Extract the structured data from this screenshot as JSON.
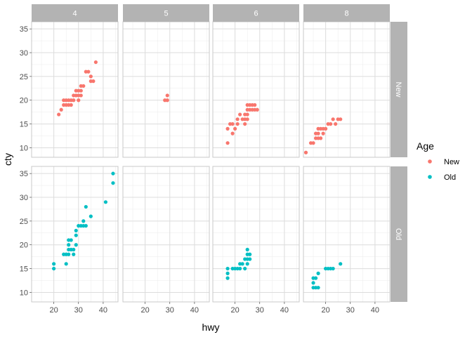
{
  "chart_data": {
    "type": "scatter",
    "xlabel": "hwy",
    "ylabel": "cty",
    "xlim": [
      11,
      46
    ],
    "ylim": [
      8,
      36.5
    ],
    "x_ticks": [
      20,
      30,
      40
    ],
    "y_ticks": [
      10,
      15,
      20,
      25,
      30,
      35
    ],
    "grid": true,
    "legend": {
      "title": "Age",
      "position": "right"
    },
    "facet_cols": [
      "4",
      "5",
      "6",
      "8"
    ],
    "facet_rows": [
      "New",
      "Old"
    ],
    "series": [
      {
        "name": "New",
        "color": "#F8766D"
      },
      {
        "name": "Old",
        "color": "#00BFC4"
      }
    ],
    "panels": [
      {
        "col": "4",
        "row": "New",
        "points": [
          [
            22,
            17
          ],
          [
            23,
            18
          ],
          [
            24,
            19
          ],
          [
            24,
            20
          ],
          [
            25,
            19
          ],
          [
            25,
            20
          ],
          [
            26,
            19
          ],
          [
            26,
            20
          ],
          [
            27,
            19
          ],
          [
            27,
            20
          ],
          [
            28,
            20
          ],
          [
            28,
            21
          ],
          [
            29,
            21
          ],
          [
            29,
            22
          ],
          [
            30,
            20
          ],
          [
            30,
            21
          ],
          [
            30,
            22
          ],
          [
            31,
            21
          ],
          [
            31,
            22
          ],
          [
            31,
            23
          ],
          [
            32,
            23
          ],
          [
            33,
            26
          ],
          [
            34,
            26
          ],
          [
            35,
            24
          ],
          [
            35,
            25
          ],
          [
            37,
            28
          ],
          [
            36,
            24
          ]
        ]
      },
      {
        "col": "5",
        "row": "New",
        "points": [
          [
            28,
            20
          ],
          [
            29,
            20
          ],
          [
            29,
            21
          ]
        ]
      },
      {
        "col": "6",
        "row": "New",
        "points": [
          [
            17,
            11
          ],
          [
            17,
            14
          ],
          [
            18,
            15
          ],
          [
            19,
            13
          ],
          [
            19,
            15
          ],
          [
            20,
            14
          ],
          [
            21,
            15
          ],
          [
            21,
            16
          ],
          [
            22,
            17
          ],
          [
            23,
            16
          ],
          [
            24,
            15
          ],
          [
            24,
            16
          ],
          [
            24,
            17
          ],
          [
            25,
            16
          ],
          [
            25,
            17
          ],
          [
            25,
            18
          ],
          [
            25,
            19
          ],
          [
            26,
            18
          ],
          [
            26,
            19
          ],
          [
            27,
            18
          ],
          [
            27,
            19
          ],
          [
            28,
            18
          ],
          [
            28,
            19
          ],
          [
            29,
            18
          ]
        ]
      },
      {
        "col": "8",
        "row": "New",
        "points": [
          [
            12,
            9
          ],
          [
            14,
            11
          ],
          [
            15,
            11
          ],
          [
            16,
            12
          ],
          [
            16,
            13
          ],
          [
            17,
            12
          ],
          [
            17,
            13
          ],
          [
            17,
            14
          ],
          [
            18,
            12
          ],
          [
            18,
            14
          ],
          [
            19,
            13
          ],
          [
            19,
            14
          ],
          [
            20,
            14
          ],
          [
            21,
            15
          ],
          [
            22,
            15
          ],
          [
            23,
            16
          ],
          [
            24,
            15
          ],
          [
            25,
            16
          ],
          [
            26,
            16
          ]
        ]
      },
      {
        "col": "4",
        "row": "Old",
        "points": [
          [
            20,
            15
          ],
          [
            20,
            16
          ],
          [
            24,
            18
          ],
          [
            25,
            16
          ],
          [
            25,
            18
          ],
          [
            26,
            18
          ],
          [
            26,
            19
          ],
          [
            26,
            20
          ],
          [
            26,
            21
          ],
          [
            27,
            19
          ],
          [
            27,
            21
          ],
          [
            28,
            18
          ],
          [
            28,
            19
          ],
          [
            29,
            20
          ],
          [
            29,
            22
          ],
          [
            29,
            23
          ],
          [
            30,
            24
          ],
          [
            31,
            24
          ],
          [
            32,
            24
          ],
          [
            32,
            25
          ],
          [
            33,
            24
          ],
          [
            33,
            28
          ],
          [
            35,
            26
          ],
          [
            41,
            29
          ],
          [
            44,
            33
          ],
          [
            44,
            35
          ]
        ]
      },
      {
        "col": "6",
        "row": "Old",
        "points": [
          [
            17,
            13
          ],
          [
            17,
            14
          ],
          [
            17,
            15
          ],
          [
            19,
            15
          ],
          [
            20,
            15
          ],
          [
            21,
            15
          ],
          [
            22,
            15
          ],
          [
            22,
            16
          ],
          [
            23,
            16
          ],
          [
            24,
            15
          ],
          [
            24,
            17
          ],
          [
            25,
            16
          ],
          [
            25,
            17
          ],
          [
            25,
            18
          ],
          [
            25,
            19
          ],
          [
            26,
            17
          ],
          [
            26,
            18
          ]
        ]
      },
      {
        "col": "8",
        "row": "Old",
        "points": [
          [
            15,
            11
          ],
          [
            15,
            12
          ],
          [
            15,
            13
          ],
          [
            16,
            11
          ],
          [
            16,
            13
          ],
          [
            17,
            11
          ],
          [
            17,
            14
          ],
          [
            20,
            15
          ],
          [
            21,
            15
          ],
          [
            22,
            15
          ],
          [
            23,
            15
          ],
          [
            26,
            16
          ]
        ]
      }
    ]
  }
}
